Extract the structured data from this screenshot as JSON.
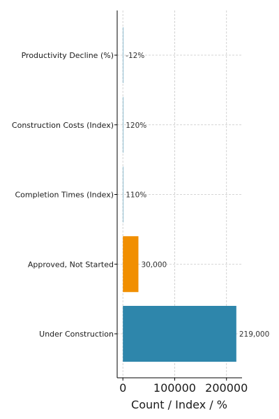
{
  "chart_data": {
    "type": "bar",
    "orientation": "horizontal",
    "categories": [
      "Under Construction",
      "Approved, Not Started",
      "Completion Times (Index)",
      "Construction Costs (Index)",
      "Productivity Decline (%)"
    ],
    "values": [
      219000,
      30000,
      110,
      120,
      -12
    ],
    "value_labels": [
      "219,000",
      "30,000",
      "110%",
      "120%",
      "-12%"
    ],
    "bar_colors": [
      "#2e86ab",
      "#f18f01",
      "#2e86ab",
      "#2e86ab",
      "#2e86ab"
    ],
    "title": "",
    "xlabel": "Count / Index / %",
    "ylabel": "",
    "xlim": [
      -11000,
      230000
    ],
    "xticks": [
      0,
      100000,
      200000
    ],
    "xtick_labels": [
      "0",
      "100000",
      "200000"
    ],
    "grid": true
  }
}
